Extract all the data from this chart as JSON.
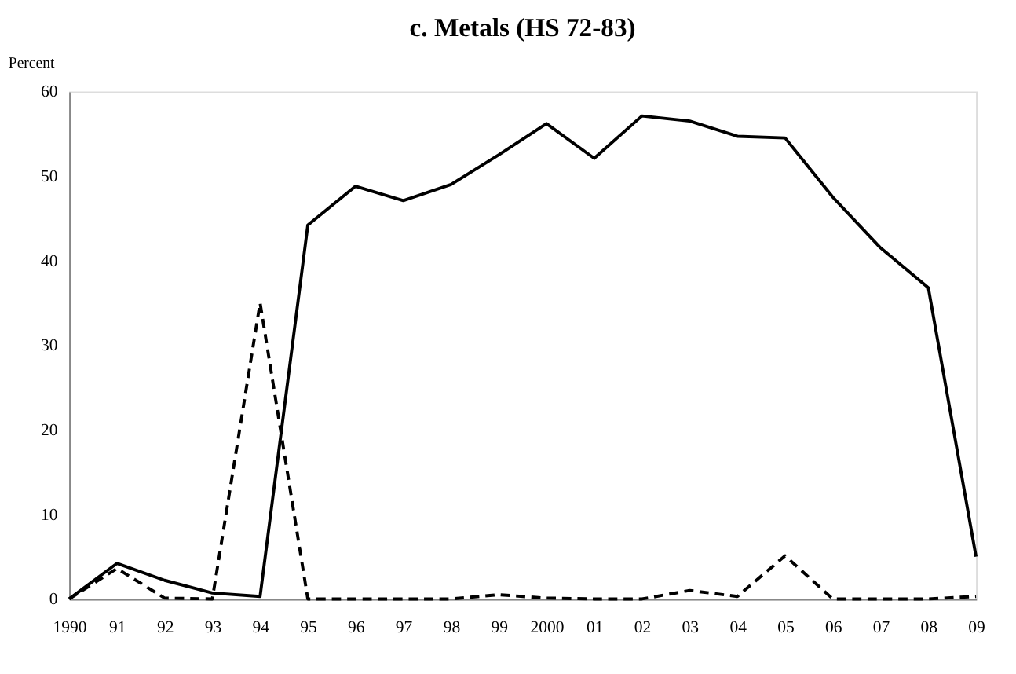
{
  "chart_data": {
    "type": "line",
    "title": "c. Metals (HS 72-83)",
    "ylabel": "Percent",
    "categories": [
      "1990",
      "91",
      "92",
      "93",
      "94",
      "95",
      "96",
      "97",
      "98",
      "99",
      "2000",
      "01",
      "02",
      "03",
      "04",
      "05",
      "06",
      "07",
      "08",
      "09"
    ],
    "series": [
      {
        "color": "#000000",
        "line_style": "solid",
        "values": [
          0,
          4.2,
          2.2,
          0.7,
          0.3,
          44.2,
          48.8,
          47.1,
          49.0,
          52.5,
          56.2,
          52.1,
          57.1,
          56.5,
          54.7,
          54.5,
          47.5,
          41.5,
          36.8,
          5.0
        ]
      },
      {
        "color": "#000000",
        "line_style": "dashed",
        "values": [
          0,
          3.6,
          0.1,
          0,
          35,
          0,
          0,
          0,
          0,
          0.5,
          0.1,
          0,
          0,
          1.0,
          0.3,
          5.1,
          0,
          0,
          0,
          0.3
        ]
      }
    ],
    "ylim": [
      0,
      60
    ],
    "yticks": [
      0,
      10,
      20,
      30,
      40,
      50,
      60
    ]
  }
}
